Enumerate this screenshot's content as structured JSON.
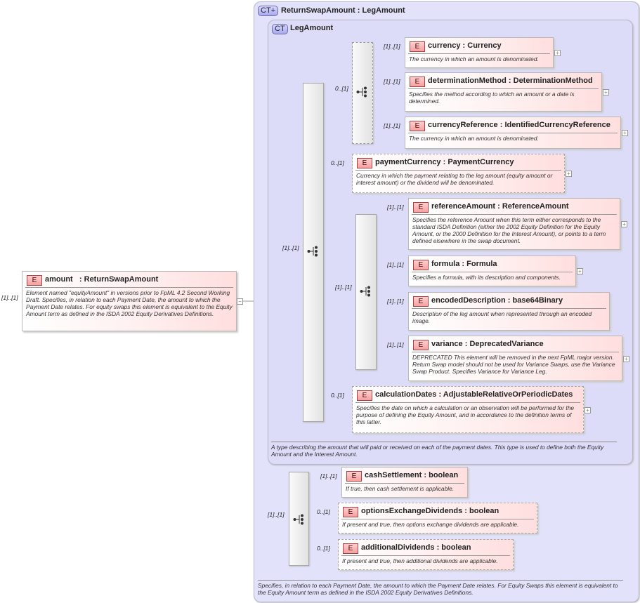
{
  "root": {
    "cardinality": "[1]..[1]",
    "name": "amount",
    "type": "ReturnSwapAmount",
    "badge": "E",
    "description": "Element named \"equityAmount\" in versions prior to FpML 4.2 Second Working Draft. Specifies, in relation to each Payment Date, the amount to which the Payment Date relates. For equity swaps this element is equivalent to the Equity Amount term as defined in the ISDA 2002 Equity Derivatives Definitions.",
    "toggle": "−"
  },
  "outer_type": {
    "badge": "CT+",
    "title": "ReturnSwapAmount : LegAmount",
    "description": "Specifies, in relation to each Payment Date, the amount to which the Payment Date relates. For Equity Swaps this element is equivalent to the Equity Amount term as defined in the ISDA 2002 Equity Derivatives Definitions."
  },
  "inner_type": {
    "badge": "CT",
    "title": "LegAmount",
    "description": "A type describing the amount that will paid or received on each of the payment dates. This type is used to define both the Equity Amount and the Interest Amount."
  },
  "compositors": [
    {
      "kind": "sequence",
      "cardinality": "[1]..[1]"
    },
    {
      "kind": "choice",
      "cardinality": "0..[1]",
      "optional": true
    },
    {
      "kind": "choice",
      "cardinality": "[1]..[1]"
    },
    {
      "kind": "sequence",
      "cardinality": "[1]..[1]"
    }
  ],
  "elements": [
    {
      "badge": "E",
      "name": "currency",
      "type": "Currency",
      "cardinality": "[1]..[1]",
      "optional": false,
      "expand": "+",
      "description": "The currency in which an amount is denominated."
    },
    {
      "badge": "E",
      "name": "determinationMethod",
      "type": "DeterminationMethod",
      "cardinality": "[1]..[1]",
      "optional": false,
      "expand": "+",
      "description": "Specifies the method according to which an amount or a date is determined."
    },
    {
      "badge": "E",
      "name": "currencyReference",
      "type": "IdentifiedCurrencyReference",
      "cardinality": "[1]..[1]",
      "optional": false,
      "expand": "+",
      "description": "The currency in which an amount is denominated."
    },
    {
      "badge": "E",
      "name": "paymentCurrency",
      "type": "PaymentCurrency",
      "cardinality": "0..[1]",
      "optional": true,
      "expand": "+",
      "description": "Currency in which the payment relating to the leg amount (equity amount or interest amount) or the dividend will be denominated."
    },
    {
      "badge": "E",
      "name": "referenceAmount",
      "type": "ReferenceAmount",
      "cardinality": "[1]..[1]",
      "optional": false,
      "expand": "+",
      "description": "Specifies the reference Amount when this term either corresponds to the standard ISDA Definition (either the 2002 Equity Definition for the Equity Amount, or the 2000 Definition for the Interest Amount), or points to a term defined elsewhere in the swap document."
    },
    {
      "badge": "E",
      "name": "formula",
      "type": "Formula",
      "cardinality": "[1]..[1]",
      "optional": false,
      "expand": "+",
      "description": "Specifies a formula, with its description and components."
    },
    {
      "badge": "E",
      "name": "encodedDescription",
      "type": "base64Binary",
      "cardinality": "[1]..[1]",
      "optional": false,
      "expand": "",
      "description": "Description of the leg amount when represented through an encoded image."
    },
    {
      "badge": "E",
      "name": "variance",
      "type": "DeprecatedVariance",
      "cardinality": "[1]..[1]",
      "optional": false,
      "expand": "+",
      "description": "DEPRECATED This element will be removed in the next FpML major version. Return Swap model should not be used for Variance Swaps, use the Variance Swap Product. Specifies Variance for Variance Leg."
    },
    {
      "badge": "E",
      "name": "calculationDates",
      "type": "AdjustableRelativeOrPeriodicDates",
      "cardinality": "0..[1]",
      "optional": true,
      "expand": "+",
      "description": "Specifies the date on which a calculation or an observation will be performed for the purpose of defining the Equity Amount, and in accordance to the definition terms of this latter."
    },
    {
      "badge": "E",
      "name": "cashSettlement",
      "type": "boolean",
      "cardinality": "[1]..[1]",
      "optional": false,
      "expand": "",
      "description": "If true, then cash settlement is applicable."
    },
    {
      "badge": "E",
      "name": "optionsExchangeDividends",
      "type": "boolean",
      "cardinality": "0..[1]",
      "optional": true,
      "expand": "",
      "description": "If present and true, then options exchange dividends are applicable."
    },
    {
      "badge": "E",
      "name": "additionalDividends",
      "type": "boolean",
      "cardinality": "0..[1]",
      "optional": true,
      "expand": "",
      "description": "If present and true, then additional dividends are applicable."
    }
  ],
  "colors": {
    "complex_type_bg": "#e2e2fb",
    "element_accent": "#ffdede",
    "badge_border": "#b04040"
  }
}
